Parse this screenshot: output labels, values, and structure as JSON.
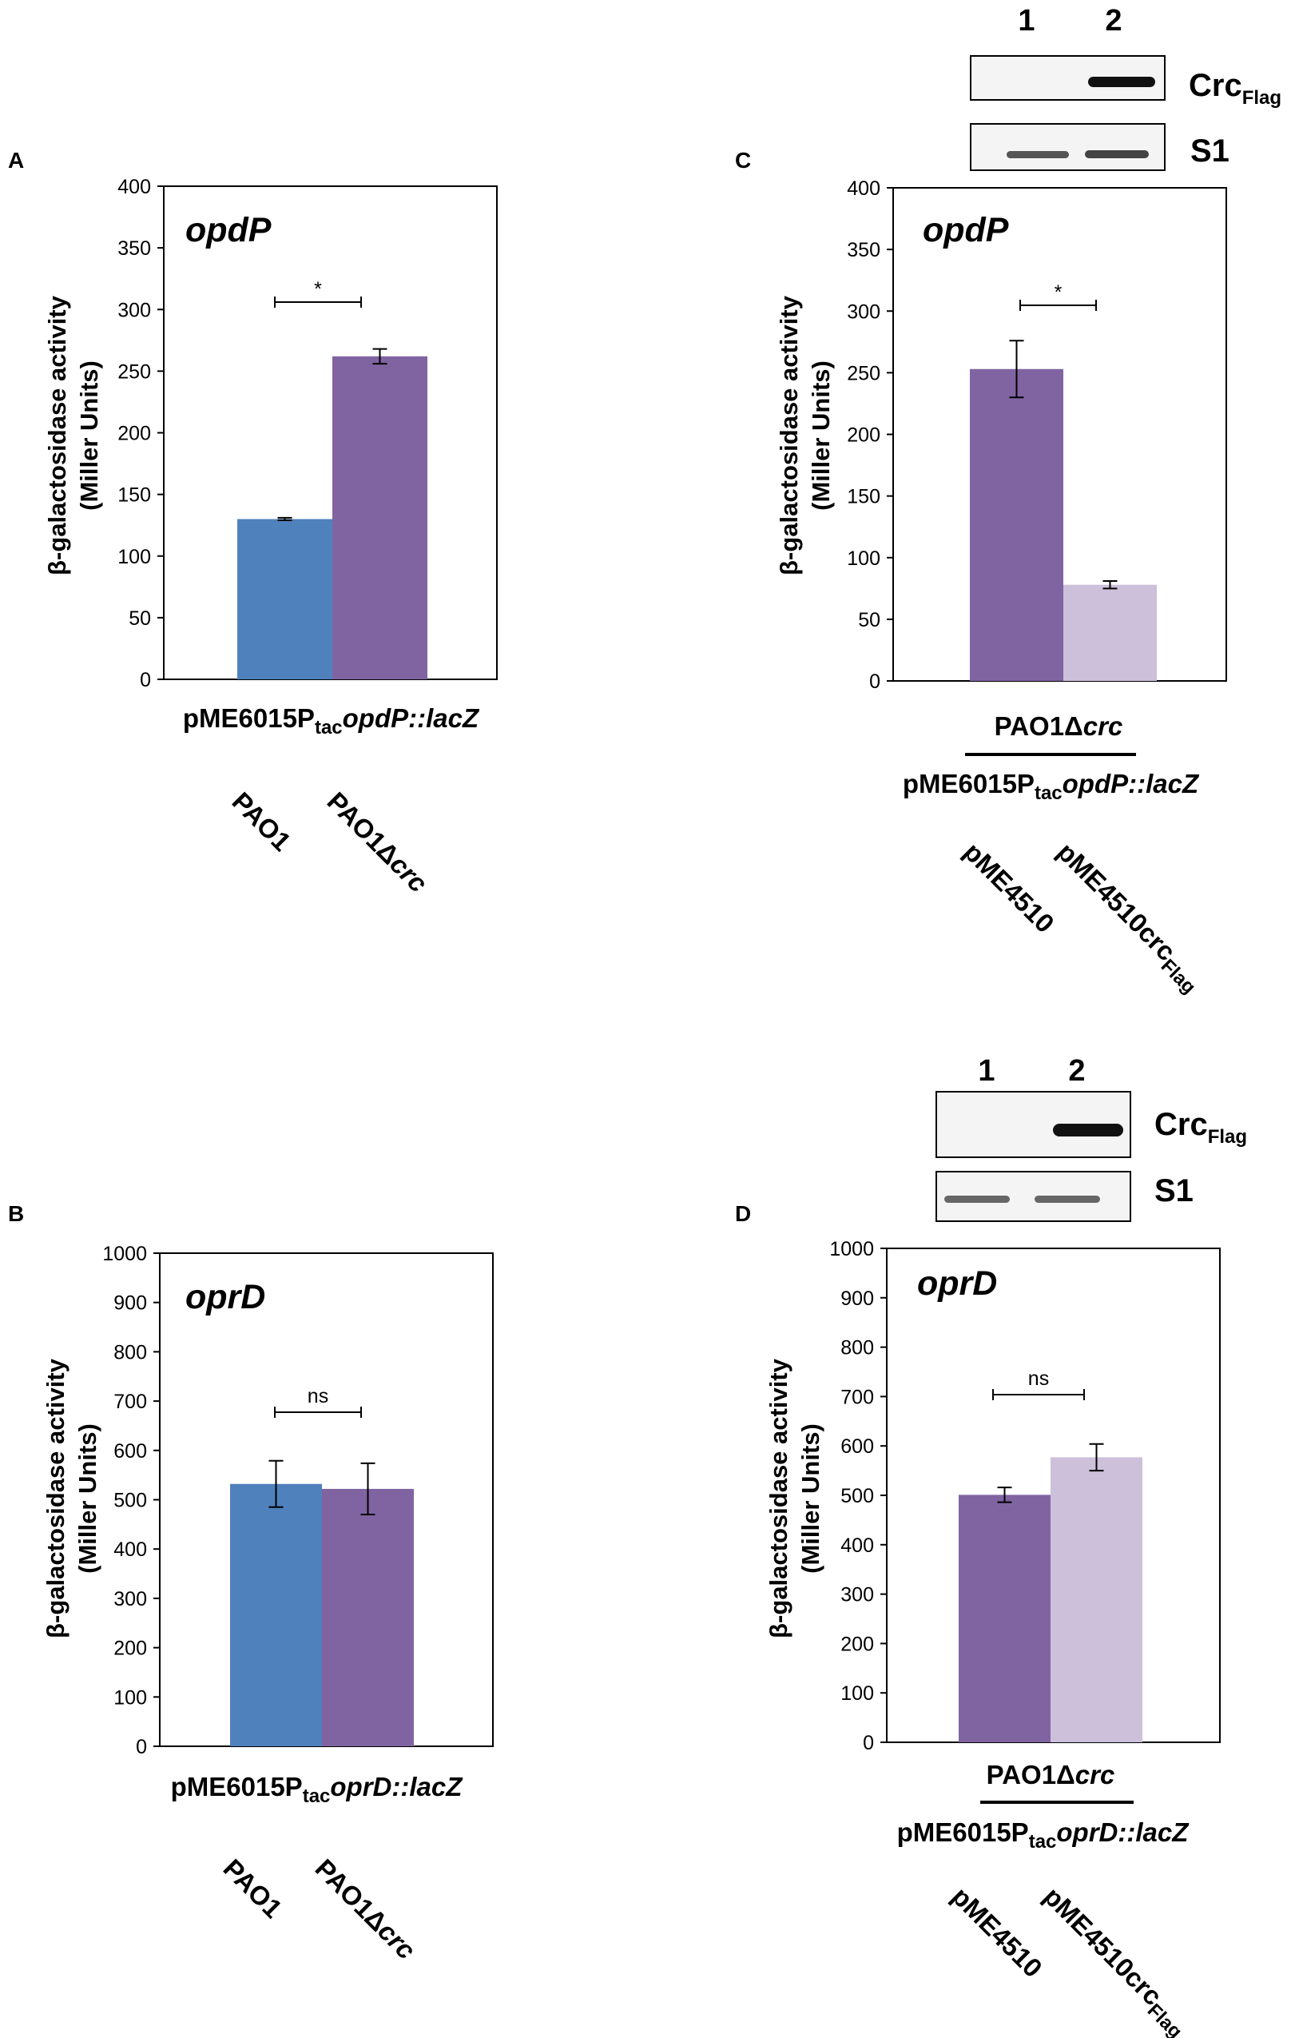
{
  "colors": {
    "blue": "#4f81bd",
    "purple": "#8064a2",
    "lavender": "#ccc0da",
    "axis": "#000000"
  },
  "chart_data": [
    {
      "panel": "A",
      "type": "bar",
      "gene": "opdP",
      "ylabel_line1": "β-galactosidase activity",
      "ylabel_line2": "(Miller Units)",
      "ylim": [
        0,
        400
      ],
      "yticks": [
        0,
        50,
        100,
        150,
        200,
        250,
        300,
        350,
        400
      ],
      "categories": [
        "PAO1",
        "PAO1Δcrc"
      ],
      "values": [
        130,
        262
      ],
      "errors": [
        1,
        6
      ],
      "bar_colors": [
        "#4f81bd",
        "#8064a2"
      ],
      "significance": "*",
      "construct": {
        "pre": "pME6015P",
        "sub": "tac",
        "gene": "opdP::lacZ"
      }
    },
    {
      "panel": "B",
      "type": "bar",
      "gene": "oprD",
      "ylabel_line1": "β-galactosidase activity",
      "ylabel_line2": "(Miller Units)",
      "ylim": [
        0,
        1000
      ],
      "yticks": [
        0,
        100,
        200,
        300,
        400,
        500,
        600,
        700,
        800,
        900,
        1000
      ],
      "categories": [
        "PAO1",
        "PAO1Δcrc"
      ],
      "values": [
        532,
        522
      ],
      "errors": [
        47,
        52
      ],
      "bar_colors": [
        "#4f81bd",
        "#8064a2"
      ],
      "significance": "ns",
      "construct": {
        "pre": "pME6015P",
        "sub": "tac",
        "gene": "oprD::lacZ"
      }
    },
    {
      "panel": "C",
      "type": "bar",
      "gene": "opdP",
      "ylabel_line1": "β-galactosidase activity",
      "ylabel_line2": "(Miller Units)",
      "ylim": [
        0,
        400
      ],
      "yticks": [
        0,
        50,
        100,
        150,
        200,
        250,
        300,
        350,
        400
      ],
      "categories": [
        "pME4510",
        "pME4510crc"
      ],
      "category_subscripts": [
        "",
        "Flag"
      ],
      "values": [
        253,
        78
      ],
      "errors": [
        23,
        3
      ],
      "bar_colors": [
        "#8064a2",
        "#ccc0da"
      ],
      "significance": "*",
      "strain": {
        "pre": "PAO1Δ",
        "ital": "crc"
      },
      "construct": {
        "pre": "pME6015P",
        "sub": "tac",
        "gene": "opdP::lacZ"
      },
      "blot": {
        "lanes": [
          "1",
          "2"
        ],
        "rows": [
          {
            "main": "Crc",
            "sub": "Flag"
          },
          {
            "main": "S1",
            "sub": ""
          }
        ]
      }
    },
    {
      "panel": "D",
      "type": "bar",
      "gene": "oprD",
      "ylabel_line1": "β-galactosidase activity",
      "ylabel_line2": "(Miller Units)",
      "ylim": [
        0,
        1000
      ],
      "yticks": [
        0,
        100,
        200,
        300,
        400,
        500,
        600,
        700,
        800,
        900,
        1000
      ],
      "categories": [
        "pME4510",
        "pME4510crc"
      ],
      "category_subscripts": [
        "",
        "Flag"
      ],
      "values": [
        501,
        577
      ],
      "errors": [
        15,
        27
      ],
      "bar_colors": [
        "#8064a2",
        "#ccc0da"
      ],
      "significance": "ns",
      "strain": {
        "pre": "PAO1Δ",
        "ital": "crc"
      },
      "construct": {
        "pre": "pME6015P",
        "sub": "tac",
        "gene": "oprD::lacZ"
      },
      "blot": {
        "lanes": [
          "1",
          "2"
        ],
        "rows": [
          {
            "main": "Crc",
            "sub": "Flag"
          },
          {
            "main": "S1",
            "sub": ""
          }
        ]
      }
    }
  ]
}
